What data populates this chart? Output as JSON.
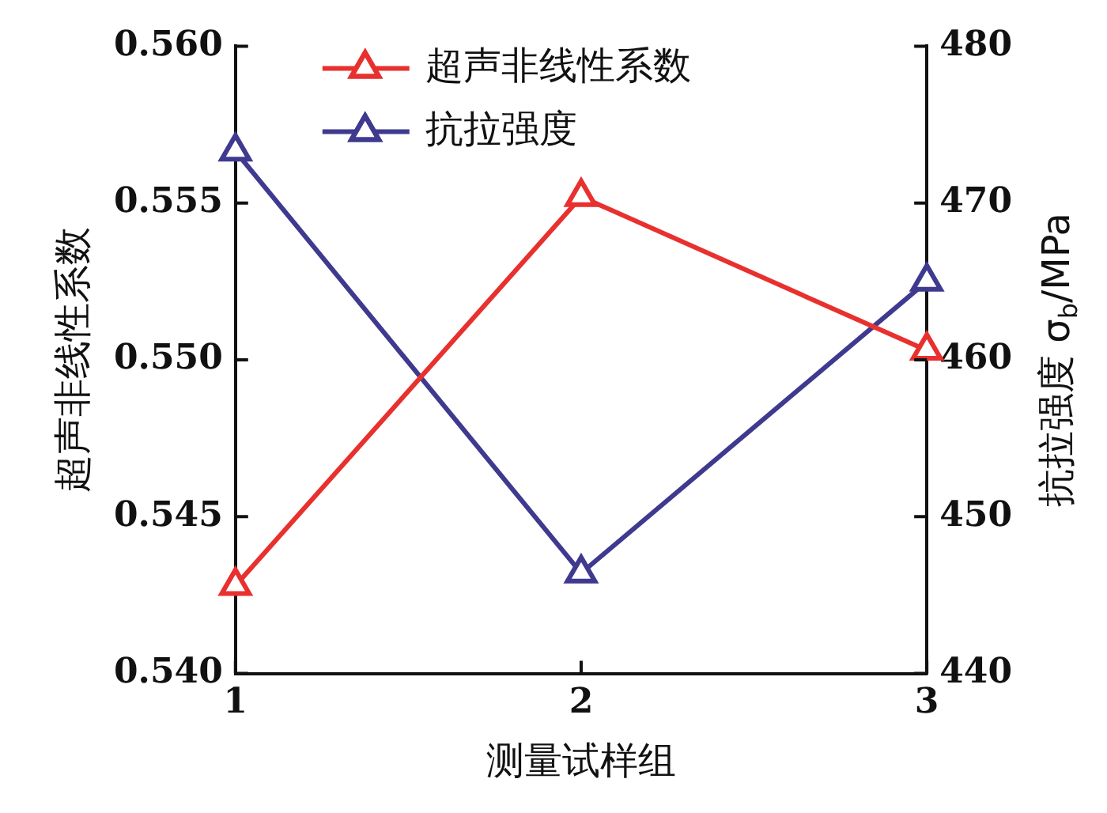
{
  "chart_data": {
    "type": "line",
    "categories": [
      "1",
      "2",
      "3"
    ],
    "xlabel": "测量试样组",
    "ylabel": "超声非线性系数",
    "y2label": "抗拉强度 σ$_{b}$/MPa",
    "series": [
      {
        "name": "超声非线性系数",
        "color": "#e8312f",
        "values": [
          0.5428,
          0.5552,
          0.5503
        ]
      },
      {
        "name": "抗拉强度",
        "color": "#3f3a8f",
        "values": [
          473.3,
          446.4,
          465.0
        ],
        "axis": "y2"
      }
    ],
    "ylim": [
      0.54,
      0.56
    ],
    "yticks": [
      {
        "value": 0.54,
        "label": "0.540"
      },
      {
        "value": 0.545,
        "label": "0.545"
      },
      {
        "value": 0.55,
        "label": "0.550"
      },
      {
        "value": 0.555,
        "label": "0.555"
      },
      {
        "value": 0.56,
        "label": "0.560"
      }
    ],
    "y2lim": [
      440,
      480
    ],
    "y2ticks": [
      440,
      450,
      460,
      470,
      480
    ],
    "legend": "top left",
    "marker": "triangle",
    "line_style": "solid",
    "grid": false
  }
}
